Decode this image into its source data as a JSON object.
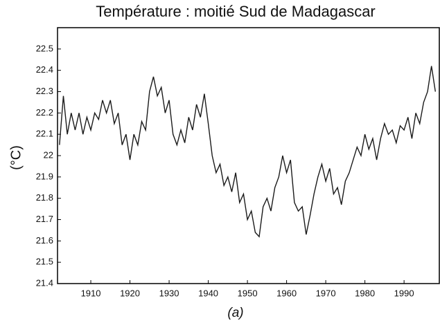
{
  "chart_data": {
    "type": "line",
    "title": "Température : moitié Sud de Madagascar",
    "y_label": "(°C)",
    "x_label": "(a)",
    "x": [
      1902,
      1903,
      1904,
      1905,
      1906,
      1907,
      1908,
      1909,
      1910,
      1911,
      1912,
      1913,
      1914,
      1915,
      1916,
      1917,
      1918,
      1919,
      1920,
      1921,
      1922,
      1923,
      1924,
      1925,
      1926,
      1927,
      1928,
      1929,
      1930,
      1931,
      1932,
      1933,
      1934,
      1935,
      1936,
      1937,
      1938,
      1939,
      1940,
      1941,
      1942,
      1943,
      1944,
      1945,
      1946,
      1947,
      1948,
      1949,
      1950,
      1951,
      1952,
      1953,
      1954,
      1955,
      1956,
      1957,
      1958,
      1959,
      1960,
      1961,
      1962,
      1963,
      1964,
      1965,
      1966,
      1967,
      1968,
      1969,
      1970,
      1971,
      1972,
      1973,
      1974,
      1975,
      1976,
      1977,
      1978,
      1979,
      1980,
      1981,
      1982,
      1983,
      1984,
      1985,
      1986,
      1987,
      1988,
      1989,
      1990,
      1991,
      1992,
      1993,
      1994,
      1995,
      1996,
      1997,
      1998
    ],
    "series": [
      {
        "color": "#1a1a1a",
        "values": [
          22.05,
          22.28,
          22.1,
          22.2,
          22.12,
          22.2,
          22.1,
          22.18,
          22.12,
          22.2,
          22.17,
          22.26,
          22.2,
          22.26,
          22.15,
          22.2,
          22.05,
          22.1,
          21.98,
          22.1,
          22.05,
          22.16,
          22.12,
          22.3,
          22.37,
          22.28,
          22.32,
          22.2,
          22.26,
          22.1,
          22.05,
          22.12,
          22.06,
          22.18,
          22.12,
          22.24,
          22.18,
          22.29,
          22.15,
          22.0,
          21.92,
          21.96,
          21.86,
          21.9,
          21.83,
          21.92,
          21.78,
          21.82,
          21.7,
          21.74,
          21.64,
          21.62,
          21.76,
          21.8,
          21.74,
          21.85,
          21.9,
          22.0,
          21.92,
          21.98,
          21.78,
          21.74,
          21.76,
          21.63,
          21.72,
          21.82,
          21.9,
          21.96,
          21.88,
          21.94,
          21.82,
          21.85,
          21.77,
          21.88,
          21.92,
          21.98,
          22.04,
          22.0,
          22.1,
          22.03,
          22.08,
          21.98,
          22.08,
          22.15,
          22.1,
          22.12,
          22.06,
          22.14,
          22.12,
          22.18,
          22.08,
          22.2,
          22.15,
          22.25,
          22.3,
          22.42,
          22.3
        ]
      }
    ],
    "xlim": [
      1901.5,
      1999
    ],
    "xticks": [
      1910,
      1920,
      1930,
      1940,
      1950,
      1960,
      1970,
      1980,
      1990
    ],
    "ylim": [
      21.4,
      22.6
    ],
    "yticks": [
      21.4,
      21.5,
      21.6,
      21.7,
      21.8,
      21.9,
      22,
      22.1,
      22.2,
      22.3,
      22.4,
      22.5
    ]
  }
}
